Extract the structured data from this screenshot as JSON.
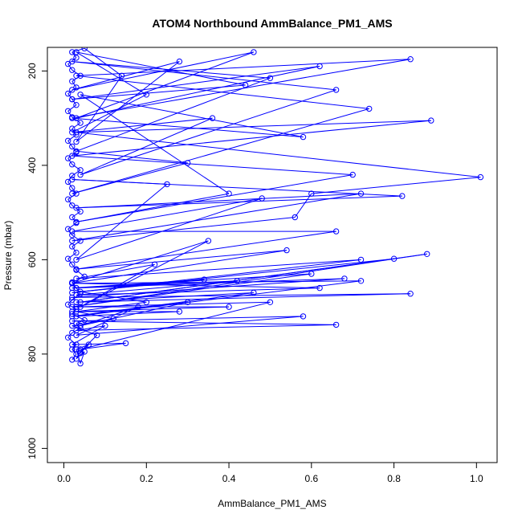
{
  "chart_data": {
    "type": "scatter",
    "title": "ATOM4 Northbound AmmBalance_PM1_AMS",
    "xlabel": "AmmBalance_PM1_AMS",
    "ylabel": "Pressure (mbar)",
    "xlim": [
      -0.04,
      1.05
    ],
    "ylim": [
      1030,
      150
    ],
    "y_reversed": true,
    "x_ticks": [
      "0.0",
      "0.2",
      "0.4",
      "0.6",
      "0.8",
      "1.0"
    ],
    "y_ticks": [
      "200",
      "400",
      "600",
      "800",
      "1000"
    ],
    "grid": false,
    "legend": "none",
    "series_color": "#0000ff",
    "series": [
      {
        "values": [
          [
            0.02,
            812
          ],
          [
            0.03,
            800
          ],
          [
            0.02,
            790
          ],
          [
            0.03,
            780
          ],
          [
            0.01,
            765
          ],
          [
            0.02,
            755
          ],
          [
            0.04,
            745
          ],
          [
            0.03,
            735
          ],
          [
            0.05,
            728
          ],
          [
            0.02,
            715
          ],
          [
            0.03,
            705
          ],
          [
            0.01,
            695
          ],
          [
            0.02,
            685
          ],
          [
            0.04,
            672
          ],
          [
            0.03,
            660
          ],
          [
            0.02,
            648
          ],
          [
            0.05,
            636
          ],
          [
            0.03,
            622
          ],
          [
            0.02,
            610
          ],
          [
            0.01,
            598
          ],
          [
            0.03,
            585
          ],
          [
            0.02,
            572
          ],
          [
            0.04,
            560
          ],
          [
            0.02,
            548
          ],
          [
            0.01,
            535
          ],
          [
            0.03,
            522
          ],
          [
            0.02,
            510
          ],
          [
            0.04,
            498
          ],
          [
            0.02,
            485
          ],
          [
            0.01,
            472
          ],
          [
            0.03,
            460
          ],
          [
            0.02,
            448
          ],
          [
            0.01,
            435
          ],
          [
            0.02,
            422
          ],
          [
            0.04,
            410
          ],
          [
            0.02,
            398
          ],
          [
            0.01,
            385
          ],
          [
            0.03,
            372
          ],
          [
            0.02,
            360
          ],
          [
            0.01,
            348
          ],
          [
            0.03,
            335
          ],
          [
            0.02,
            322
          ],
          [
            0.04,
            310
          ],
          [
            0.02,
            298
          ],
          [
            0.01,
            285
          ],
          [
            0.03,
            272
          ],
          [
            0.02,
            260
          ],
          [
            0.01,
            248
          ],
          [
            0.03,
            235
          ],
          [
            0.02,
            222
          ],
          [
            0.04,
            210
          ],
          [
            0.02,
            198
          ],
          [
            0.01,
            185
          ],
          [
            0.03,
            172
          ],
          [
            0.02,
            160
          ],
          [
            0.05,
            152
          ],
          [
            0.14,
            210
          ],
          [
            0.03,
            350
          ],
          [
            0.28,
            180
          ],
          [
            0.02,
            240
          ],
          [
            0.46,
            160
          ],
          [
            0.03,
            300
          ],
          [
            0.62,
            190
          ],
          [
            0.02,
            260
          ],
          [
            0.44,
            230
          ],
          [
            0.03,
            160
          ],
          [
            0.2,
            250
          ],
          [
            0.02,
            330
          ],
          [
            0.36,
            300
          ],
          [
            0.04,
            420
          ],
          [
            0.66,
            240
          ],
          [
            0.02,
            180
          ],
          [
            0.5,
            215
          ],
          [
            0.03,
            370
          ],
          [
            0.3,
            395
          ],
          [
            0.02,
            460
          ],
          [
            0.74,
            280
          ],
          [
            0.03,
            210
          ],
          [
            0.84,
            175
          ],
          [
            0.02,
            300
          ],
          [
            0.58,
            340
          ],
          [
            0.04,
            250
          ],
          [
            0.4,
            460
          ],
          [
            0.03,
            520
          ],
          [
            0.7,
            420
          ],
          [
            0.02,
            380
          ],
          [
            0.89,
            305
          ],
          [
            0.03,
            330
          ],
          [
            1.01,
            425
          ],
          [
            0.6,
            460
          ],
          [
            0.56,
            510
          ],
          [
            0.02,
            560
          ],
          [
            0.72,
            460
          ],
          [
            0.03,
            490
          ],
          [
            0.82,
            465
          ],
          [
            0.02,
            430
          ],
          [
            0.25,
            440
          ],
          [
            0.03,
            600
          ],
          [
            0.48,
            470
          ],
          [
            0.02,
            540
          ],
          [
            0.66,
            540
          ],
          [
            0.03,
            620
          ],
          [
            0.54,
            580
          ],
          [
            0.02,
            650
          ],
          [
            0.35,
            560
          ],
          [
            0.04,
            700
          ],
          [
            0.22,
            610
          ],
          [
            0.03,
            640
          ],
          [
            0.72,
            600
          ],
          [
            0.02,
            670
          ],
          [
            0.8,
            598
          ],
          [
            0.04,
            690
          ],
          [
            0.88,
            588
          ],
          [
            0.02,
            700
          ],
          [
            0.6,
            630
          ],
          [
            0.03,
            660
          ],
          [
            0.68,
            640
          ],
          [
            0.02,
            680
          ],
          [
            0.84,
            672
          ],
          [
            0.03,
            690
          ],
          [
            0.46,
            670
          ],
          [
            0.02,
            720
          ],
          [
            0.3,
            690
          ],
          [
            0.04,
            740
          ],
          [
            0.18,
            700
          ],
          [
            0.03,
            760
          ],
          [
            0.58,
            720
          ],
          [
            0.02,
            730
          ],
          [
            0.66,
            738
          ],
          [
            0.03,
            750
          ],
          [
            0.1,
            740
          ],
          [
            0.02,
            780
          ],
          [
            0.15,
            777
          ],
          [
            0.04,
            790
          ],
          [
            0.5,
            690
          ],
          [
            0.03,
            700
          ],
          [
            0.4,
            700
          ],
          [
            0.02,
            710
          ],
          [
            0.28,
            710
          ],
          [
            0.03,
            720
          ],
          [
            0.72,
            645
          ],
          [
            0.02,
            650
          ],
          [
            0.62,
            660
          ],
          [
            0.03,
            675
          ],
          [
            0.42,
            645
          ],
          [
            0.02,
            660
          ],
          [
            0.34,
            642
          ],
          [
            0.04,
            668
          ],
          [
            0.2,
            690
          ],
          [
            0.03,
            710
          ],
          [
            0.12,
            725
          ],
          [
            0.02,
            740
          ],
          [
            0.08,
            760
          ],
          [
            0.04,
            795
          ],
          [
            0.03,
            810
          ],
          [
            0.05,
            795
          ],
          [
            0.04,
            820
          ],
          [
            0.03,
            790
          ],
          [
            0.06,
            780
          ],
          [
            0.04,
            798
          ]
        ]
      }
    ]
  }
}
